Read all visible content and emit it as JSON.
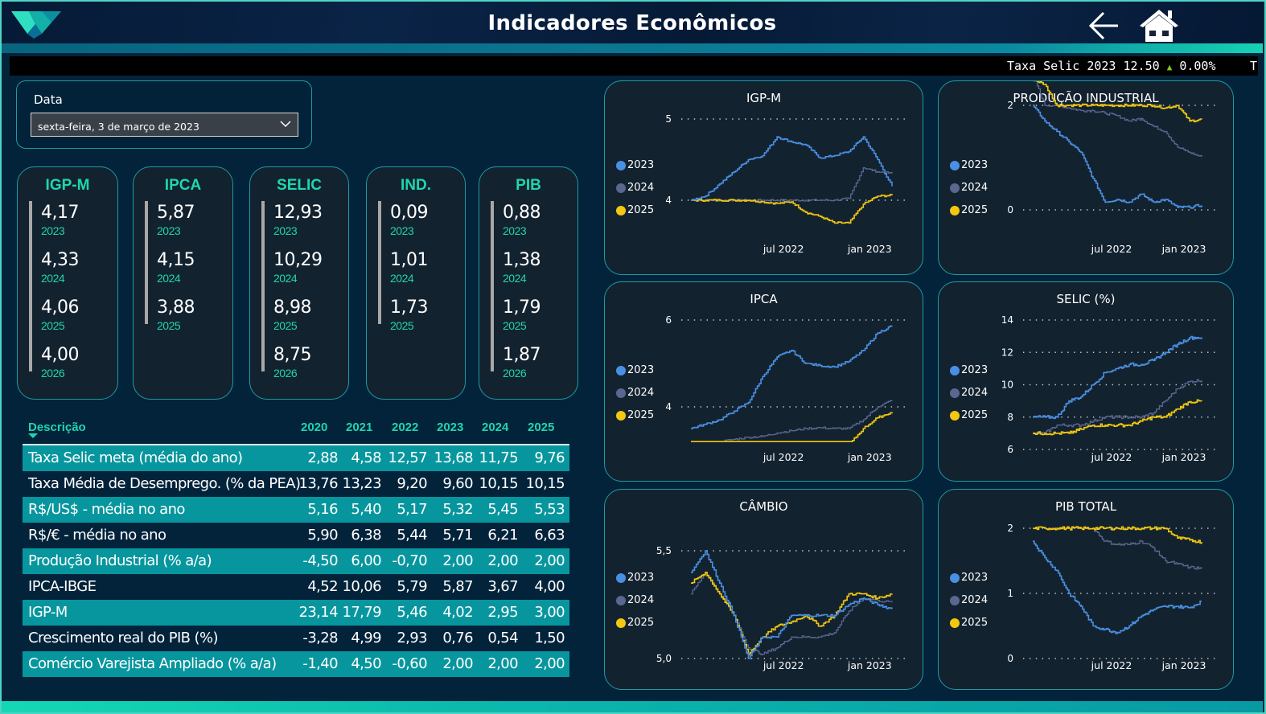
{
  "header": {
    "title": "Indicadores Econômicos",
    "logo_icon": "logo-v-icon",
    "back_icon": "arrow-left-icon",
    "home_icon": "home-icon"
  },
  "ticker": {
    "label": "Taxa Selic 2023 12.50",
    "direction": "up",
    "change": "0.00%",
    "next_partial": "T",
    "up_color": "#7ccf1c"
  },
  "date_filter": {
    "label": "Data",
    "value": "sexta-feira, 3 de março de 2023"
  },
  "kpis": [
    {
      "title": "IGP-M",
      "items": [
        {
          "value": "4,17",
          "year": "2023"
        },
        {
          "value": "4,33",
          "year": "2024"
        },
        {
          "value": "4,06",
          "year": "2025"
        },
        {
          "value": "4,00",
          "year": "2026"
        }
      ]
    },
    {
      "title": "IPCA",
      "items": [
        {
          "value": "5,87",
          "year": "2023"
        },
        {
          "value": "4,15",
          "year": "2024"
        },
        {
          "value": "3,88",
          "year": "2025"
        }
      ]
    },
    {
      "title": "SELIC",
      "items": [
        {
          "value": "12,93",
          "year": "2023"
        },
        {
          "value": "10,29",
          "year": "2024"
        },
        {
          "value": "8,98",
          "year": "2025"
        },
        {
          "value": "8,75",
          "year": "2026"
        }
      ]
    },
    {
      "title": "IND.",
      "items": [
        {
          "value": "0,09",
          "year": "2023"
        },
        {
          "value": "1,01",
          "year": "2024"
        },
        {
          "value": "1,73",
          "year": "2025"
        }
      ]
    },
    {
      "title": "PIB",
      "items": [
        {
          "value": "0,88",
          "year": "2023"
        },
        {
          "value": "1,38",
          "year": "2024"
        },
        {
          "value": "1,79",
          "year": "2025"
        },
        {
          "value": "1,87",
          "year": "2026"
        }
      ]
    }
  ],
  "table": {
    "columns": [
      "Descrição",
      "2020",
      "2021",
      "2022",
      "2023",
      "2024",
      "2025"
    ],
    "sort": "descending",
    "rows": [
      [
        "Taxa Selic meta (média do ano)",
        "2,88",
        "4,58",
        "12,57",
        "13,68",
        "11,75",
        "9,76"
      ],
      [
        "Taxa Média de Desemprego. (% da PEA)",
        "13,76",
        "13,23",
        "9,20",
        "9,60",
        "10,15",
        "10,15"
      ],
      [
        "R$/US$ - média no ano",
        "5,16",
        "5,40",
        "5,17",
        "5,32",
        "5,45",
        "5,53"
      ],
      [
        "R$/€ - média no ano",
        "5,90",
        "6,38",
        "5,44",
        "5,71",
        "6,21",
        "6,63"
      ],
      [
        "Produção Industrial (% a/a)",
        "-4,50",
        "6,00",
        "-0,70",
        "2,00",
        "2,00",
        "2,00"
      ],
      [
        "IPCA-IBGE",
        "4,52",
        "10,06",
        "5,79",
        "5,87",
        "3,67",
        "4,00"
      ],
      [
        "IGP-M",
        "23,14",
        "17,79",
        "5,46",
        "4,02",
        "2,95",
        "3,00"
      ],
      [
        "Crescimento real do PIB (%)",
        "-3,28",
        "4,99",
        "2,93",
        "0,76",
        "0,54",
        "1,50"
      ],
      [
        "Comércio Varejista Ampliado (% a/a)",
        "-1,40",
        "4,50",
        "-0,60",
        "2,00",
        "2,00",
        "2,00"
      ]
    ]
  },
  "colors": {
    "accent": "#1fd6ae",
    "row_alt": "#07969e",
    "series_2023": "#4a90e2",
    "series_2024": "#5a6791",
    "series_2025": "#f2c811"
  },
  "chart_data": [
    {
      "id": "igpm",
      "type": "line",
      "title": "IGP-M",
      "x_ticks": [
        "jul 2022",
        "jan 2023"
      ],
      "y_ticks": [
        "4",
        "5"
      ],
      "ylim": [
        3.55,
        5.05
      ],
      "legend": [
        "2023",
        "2024",
        "2025"
      ],
      "legend_position": "left",
      "x": [
        "jan 2022",
        "feb 2022",
        "mar 2022",
        "apr 2022",
        "may 2022",
        "jun 2022",
        "jul 2022",
        "aug 2022",
        "sep 2022",
        "oct 2022",
        "nov 2022",
        "dec 2022",
        "jan 2023",
        "feb 2023",
        "mar 2023"
      ],
      "series": [
        {
          "name": "2023",
          "values": [
            4.0,
            4.05,
            4.2,
            4.35,
            4.5,
            4.55,
            4.78,
            4.72,
            4.68,
            4.52,
            4.55,
            4.6,
            4.78,
            4.5,
            4.17
          ]
        },
        {
          "name": "2024",
          "values": [
            4.0,
            4.0,
            4.0,
            4.0,
            4.0,
            4.0,
            4.0,
            4.0,
            4.0,
            4.0,
            4.0,
            4.02,
            4.4,
            4.35,
            4.33
          ]
        },
        {
          "name": "2025",
          "values": [
            4.0,
            4.0,
            4.0,
            4.0,
            4.0,
            3.98,
            3.96,
            3.98,
            3.85,
            3.8,
            3.72,
            3.72,
            3.95,
            4.05,
            4.06
          ]
        }
      ]
    },
    {
      "id": "prod",
      "type": "line",
      "title": "PRODUÇÃO INDUSTRIAL",
      "x_ticks": [
        "jul 2022",
        "jan 2023"
      ],
      "y_ticks": [
        "0",
        "2"
      ],
      "ylim": [
        -0.8,
        2.9
      ],
      "legend": [
        "2023",
        "2024",
        "2025"
      ],
      "legend_position": "left",
      "x": [
        "jan 2022",
        "feb 2022",
        "mar 2022",
        "apr 2022",
        "may 2022",
        "jun 2022",
        "jul 2022",
        "aug 2022",
        "sep 2022",
        "oct 2022",
        "nov 2022",
        "dec 2022",
        "jan 2023",
        "feb 2023",
        "mar 2023"
      ],
      "series": [
        {
          "name": "2023",
          "values": [
            2.0,
            1.7,
            1.5,
            1.3,
            1.1,
            0.6,
            0.15,
            0.2,
            0.15,
            0.3,
            0.15,
            0.2,
            0.05,
            0.05,
            0.09
          ]
        },
        {
          "name": "2024",
          "values": [
            2.6,
            2.0,
            2.0,
            1.95,
            1.9,
            1.9,
            1.85,
            1.8,
            1.7,
            1.75,
            1.6,
            1.5,
            1.2,
            1.1,
            1.01
          ]
        },
        {
          "name": "2025",
          "values": [
            2.5,
            2.4,
            2.0,
            2.0,
            2.0,
            2.0,
            2.0,
            2.0,
            2.0,
            2.0,
            2.0,
            1.95,
            2.0,
            1.7,
            1.73
          ]
        }
      ]
    },
    {
      "id": "ipca",
      "type": "line",
      "title": "IPCA",
      "x_ticks": [
        "jul 2022",
        "jan 2023"
      ],
      "y_ticks": [
        "4",
        "6"
      ],
      "ylim": [
        3.0,
        6.2
      ],
      "legend": [
        "2023",
        "2024",
        "2025"
      ],
      "legend_position": "left",
      "x": [
        "jan 2022",
        "feb 2022",
        "mar 2022",
        "apr 2022",
        "may 2022",
        "jun 2022",
        "jul 2022",
        "aug 2022",
        "sep 2022",
        "oct 2022",
        "nov 2022",
        "dec 2022",
        "jan 2023",
        "feb 2023",
        "mar 2023"
      ],
      "series": [
        {
          "name": "2023",
          "values": [
            3.5,
            3.6,
            3.7,
            3.9,
            4.1,
            4.7,
            5.15,
            5.3,
            5.0,
            4.95,
            4.92,
            5.05,
            5.3,
            5.7,
            5.87
          ]
        },
        {
          "name": "2024",
          "values": null,
          "values_partial": [
            null,
            3.1,
            3.2,
            3.25,
            3.3,
            3.32,
            3.4,
            3.45,
            3.5,
            3.52,
            3.5,
            3.5,
            3.7,
            4.0,
            4.15
          ]
        },
        {
          "name": "2025",
          "values": [
            3.1,
            3.1,
            3.1,
            3.1,
            3.1,
            3.1,
            3.1,
            3.1,
            3.1,
            3.1,
            3.1,
            3.12,
            3.5,
            3.75,
            3.88
          ]
        }
      ]
    },
    {
      "id": "selic",
      "type": "line",
      "title": "SELIC (%)",
      "x_ticks": [
        "jul 2022",
        "jan 2023"
      ],
      "y_ticks": [
        "6",
        "8",
        "10",
        "12",
        "14"
      ],
      "ylim": [
        6,
        14
      ],
      "legend": [
        "2023",
        "2024",
        "2025"
      ],
      "legend_position": "left",
      "x": [
        "jan 2022",
        "feb 2022",
        "mar 2022",
        "apr 2022",
        "may 2022",
        "jun 2022",
        "jul 2022",
        "aug 2022",
        "sep 2022",
        "oct 2022",
        "nov 2022",
        "dec 2022",
        "jan 2023",
        "feb 2023",
        "mar 2023"
      ],
      "series": [
        {
          "name": "2023",
          "values": [
            8.0,
            8.0,
            8.0,
            9.0,
            9.25,
            10.0,
            10.75,
            11.0,
            11.25,
            11.25,
            11.5,
            12.0,
            12.5,
            12.9,
            12.93
          ]
        },
        {
          "name": "2024",
          "values": [
            7.0,
            7.0,
            7.5,
            7.5,
            7.5,
            7.75,
            8.0,
            8.0,
            8.0,
            8.0,
            8.25,
            9.0,
            9.75,
            10.2,
            10.29
          ]
        },
        {
          "name": "2025",
          "values": [
            7.0,
            7.0,
            7.0,
            7.0,
            7.25,
            7.5,
            7.5,
            7.5,
            7.5,
            7.75,
            8.0,
            8.0,
            8.5,
            8.95,
            8.98
          ]
        }
      ]
    },
    {
      "id": "cambio",
      "type": "line",
      "title": "CÂMBIO",
      "x_ticks": [
        "jul 2022",
        "jan 2023"
      ],
      "y_ticks": [
        "5,0",
        "5,5"
      ],
      "ylim": [
        4.95,
        5.6
      ],
      "legend": [
        "2023",
        "2024",
        "2025"
      ],
      "legend_position": "left",
      "x": [
        "jan 2022",
        "feb 2022",
        "mar 2022",
        "apr 2022",
        "may 2022",
        "jun 2022",
        "jul 2022",
        "aug 2022",
        "sep 2022",
        "oct 2022",
        "nov 2022",
        "dec 2022",
        "jan 2023",
        "feb 2023",
        "mar 2023"
      ],
      "series": [
        {
          "name": "2023",
          "values": [
            5.4,
            5.5,
            5.35,
            5.2,
            5.0,
            5.1,
            5.1,
            5.2,
            5.2,
            5.2,
            5.2,
            5.25,
            5.28,
            5.25,
            5.23
          ]
        },
        {
          "name": "2024",
          "values": [
            5.3,
            5.4,
            5.3,
            5.2,
            5.05,
            5.02,
            5.05,
            5.1,
            5.1,
            5.1,
            5.12,
            5.22,
            5.28,
            5.27,
            5.26
          ]
        },
        {
          "name": "2025",
          "values": [
            5.35,
            5.4,
            5.3,
            5.2,
            5.02,
            5.1,
            5.15,
            5.17,
            5.2,
            5.15,
            5.2,
            5.3,
            5.3,
            5.28,
            5.3
          ]
        }
      ]
    },
    {
      "id": "pib",
      "type": "line",
      "title": "PIB TOTAL",
      "x_ticks": [
        "jul 2022",
        "jan 2023"
      ],
      "y_ticks": [
        "0",
        "1",
        "2"
      ],
      "ylim": [
        0,
        2
      ],
      "legend": [
        "2023",
        "2024",
        "2025"
      ],
      "legend_position": "left",
      "x": [
        "jan 2022",
        "feb 2022",
        "mar 2022",
        "apr 2022",
        "may 2022",
        "jun 2022",
        "jul 2022",
        "aug 2022",
        "sep 2022",
        "oct 2022",
        "nov 2022",
        "dec 2022",
        "jan 2023",
        "feb 2023",
        "mar 2023"
      ],
      "series": [
        {
          "name": "2023",
          "values": [
            1.8,
            1.55,
            1.35,
            1.0,
            0.8,
            0.5,
            0.45,
            0.4,
            0.5,
            0.65,
            0.75,
            0.8,
            0.8,
            0.78,
            0.88
          ]
        },
        {
          "name": "2024",
          "values": [
            null,
            null,
            null,
            null,
            null,
            2.0,
            1.8,
            1.75,
            1.75,
            1.8,
            1.7,
            1.5,
            1.45,
            1.4,
            1.38
          ]
        },
        {
          "name": "2025",
          "values": [
            2.0,
            2.0,
            2.0,
            2.0,
            2.0,
            2.0,
            2.0,
            2.0,
            2.0,
            2.0,
            2.0,
            2.0,
            1.85,
            1.82,
            1.79
          ]
        }
      ]
    }
  ]
}
